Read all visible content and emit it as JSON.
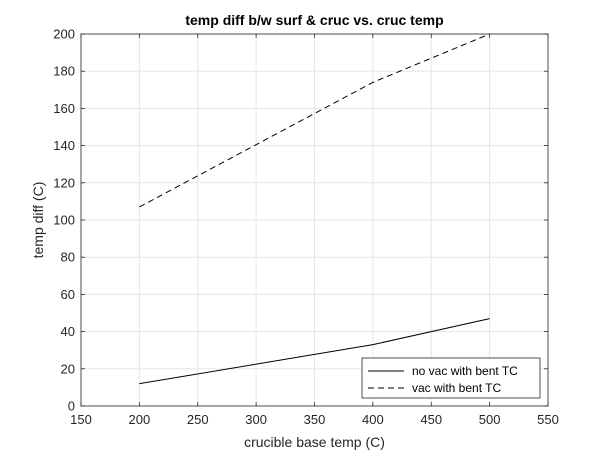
{
  "chart_data": {
    "type": "line",
    "title": "temp diff b/w surf & cruc vs. cruc temp",
    "xlabel": "crucible base temp (C)",
    "ylabel": "temp diff (C)",
    "xlim": [
      150,
      550
    ],
    "ylim": [
      0,
      200
    ],
    "xticks": [
      150,
      200,
      250,
      300,
      350,
      400,
      450,
      500,
      550
    ],
    "yticks": [
      0,
      20,
      40,
      60,
      80,
      100,
      120,
      140,
      160,
      180,
      200
    ],
    "grid": true,
    "legend_position": "bottom-right",
    "series": [
      {
        "name": "no vac with bent TC",
        "style": "solid",
        "color": "#000000",
        "x": [
          200,
          400,
          500
        ],
        "y": [
          12,
          33,
          47
        ]
      },
      {
        "name": "vac with bent TC",
        "style": "dashed",
        "color": "#000000",
        "x": [
          200,
          400,
          500
        ],
        "y": [
          107,
          174,
          200
        ]
      }
    ]
  }
}
